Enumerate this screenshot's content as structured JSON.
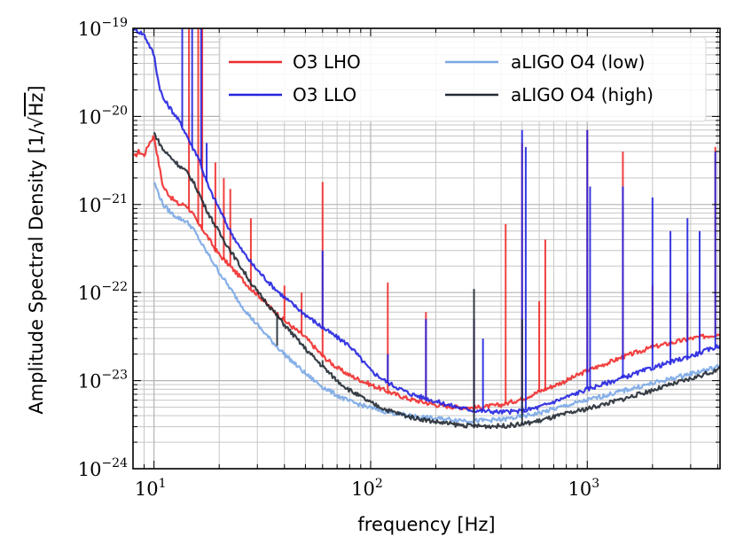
{
  "chart_data": {
    "type": "line",
    "title": "",
    "xlabel": "frequency [Hz]",
    "ylabel": "Amplitude Spectral Density [1/√Hz]",
    "ylabel_main": "Amplitude Spectral Density [1/",
    "ylabel_sqrt": "√",
    "ylabel_hz": "Hz",
    "ylabel_close": "]",
    "xscale": "log",
    "yscale": "log",
    "xlim": [
      8,
      4100
    ],
    "ylim": [
      1e-24,
      1e-19
    ],
    "grid": "major+minor",
    "x_ticks": [
      {
        "value": 10,
        "base": "10",
        "exp": "1"
      },
      {
        "value": 100,
        "base": "10",
        "exp": "2"
      },
      {
        "value": 1000,
        "base": "10",
        "exp": "3"
      }
    ],
    "y_ticks": [
      {
        "value": 1e-24,
        "base": "10",
        "exp": "−24"
      },
      {
        "value": 1e-23,
        "base": "10",
        "exp": "−23"
      },
      {
        "value": 1e-22,
        "base": "10",
        "exp": "−22"
      },
      {
        "value": 1e-21,
        "base": "10",
        "exp": "−21"
      },
      {
        "value": 1e-20,
        "base": "10",
        "exp": "−20"
      },
      {
        "value": 1e-19,
        "base": "10",
        "exp": "−19"
      }
    ],
    "legend_position": "top-right",
    "series": [
      {
        "name": "O3 LHO",
        "color": "#f02c2c",
        "points": [
          [
            8,
            3.3e-21
          ],
          [
            8.5,
            4e-21
          ],
          [
            9,
            3.6e-21
          ],
          [
            9.5,
            5e-21
          ],
          [
            10,
            6e-21
          ],
          [
            10.5,
            3e-21
          ],
          [
            11,
            1.6e-21
          ],
          [
            12,
            1.2e-21
          ],
          [
            13,
            1e-21
          ],
          [
            14,
            1e-21
          ],
          [
            15,
            8e-22
          ],
          [
            16,
            6e-22
          ],
          [
            17,
            5e-22
          ],
          [
            18,
            4e-22
          ],
          [
            19,
            3.2e-22
          ],
          [
            20,
            2.7e-22
          ],
          [
            22,
            2.1e-22
          ],
          [
            25,
            1.5e-22
          ],
          [
            28,
            1.1e-22
          ],
          [
            30,
            9.6e-23
          ],
          [
            35,
            6.5e-23
          ],
          [
            40,
            4.8e-23
          ],
          [
            50,
            3.1e-23
          ],
          [
            60,
            1.9e-23
          ],
          [
            70,
            1.4e-23
          ],
          [
            80,
            1.15e-23
          ],
          [
            100,
            9e-24
          ],
          [
            120,
            7.5e-24
          ],
          [
            150,
            6.2e-24
          ],
          [
            200,
            5.3e-24
          ],
          [
            250,
            5e-24
          ],
          [
            300,
            4.9e-24
          ],
          [
            400,
            5.3e-24
          ],
          [
            500,
            6.2e-24
          ],
          [
            600,
            7.5e-24
          ],
          [
            800,
            1e-23
          ],
          [
            1000,
            1.3e-23
          ],
          [
            1500,
            1.9e-23
          ],
          [
            2000,
            2.4e-23
          ],
          [
            3000,
            3e-23
          ],
          [
            4100,
            3.4e-23
          ]
        ],
        "spikes": [
          [
            14.5,
            1e-19
          ],
          [
            16,
            1e-19
          ],
          [
            16.7,
            1e-19
          ],
          [
            19.2,
            3e-21
          ],
          [
            21,
            2e-21
          ],
          [
            22.5,
            1.5e-21
          ],
          [
            28,
            7e-22
          ],
          [
            40,
            1.2e-22
          ],
          [
            48,
            1e-22
          ],
          [
            60,
            1.8e-21
          ],
          [
            120,
            1.3e-22
          ],
          [
            180,
            6e-23
          ],
          [
            300,
            5e-23
          ],
          [
            420,
            6e-22
          ],
          [
            500,
            5e-21
          ],
          [
            600,
            8e-23
          ],
          [
            640,
            4e-22
          ],
          [
            1000,
            7e-21
          ],
          [
            1460,
            4e-21
          ],
          [
            2000,
            1.2e-22
          ],
          [
            2900,
            1e-22
          ],
          [
            3900,
            4.5e-21
          ]
        ]
      },
      {
        "name": "O3 LLO",
        "color": "#2424e0",
        "points": [
          [
            8,
            1e-19
          ],
          [
            9,
            8.5e-20
          ],
          [
            10,
            5e-20
          ],
          [
            10.5,
            2.4e-20
          ],
          [
            11,
            1.6e-20
          ],
          [
            12,
            1.2e-20
          ],
          [
            13,
            9e-21
          ],
          [
            14,
            6.5e-21
          ],
          [
            15,
            4.5e-21
          ],
          [
            16,
            3.5e-21
          ],
          [
            17,
            2.2e-21
          ],
          [
            18,
            1.5e-21
          ],
          [
            20,
            9e-22
          ],
          [
            22,
            5.5e-22
          ],
          [
            25,
            3.2e-22
          ],
          [
            28,
            2.2e-22
          ],
          [
            30,
            1.8e-22
          ],
          [
            35,
            1.2e-22
          ],
          [
            40,
            8.8e-23
          ],
          [
            50,
            5.6e-23
          ],
          [
            60,
            4e-23
          ],
          [
            70,
            3.1e-23
          ],
          [
            80,
            2.5e-23
          ],
          [
            100,
            1.3e-23
          ],
          [
            120,
            9.5e-24
          ],
          [
            150,
            7.2e-24
          ],
          [
            200,
            5.8e-24
          ],
          [
            250,
            5e-24
          ],
          [
            300,
            4.6e-24
          ],
          [
            400,
            4.4e-24
          ],
          [
            500,
            4.5e-24
          ],
          [
            600,
            5e-24
          ],
          [
            800,
            6.5e-24
          ],
          [
            1000,
            8e-24
          ],
          [
            1500,
            1.1e-23
          ],
          [
            2000,
            1.4e-23
          ],
          [
            3000,
            1.9e-23
          ],
          [
            4100,
            2.5e-23
          ]
        ],
        "spikes": [
          [
            13.5,
            1e-19
          ],
          [
            15,
            1e-19
          ],
          [
            16.5,
            1e-19
          ],
          [
            17.5,
            5e-21
          ],
          [
            60,
            3e-22
          ],
          [
            120,
            2e-23
          ],
          [
            180,
            5e-23
          ],
          [
            300,
            5e-23
          ],
          [
            330,
            3e-23
          ],
          [
            500,
            7e-21
          ],
          [
            520,
            4.5e-21
          ],
          [
            1000,
            7e-21
          ],
          [
            1030,
            1.6e-21
          ],
          [
            1460,
            1.6e-21
          ],
          [
            2000,
            1.2e-21
          ],
          [
            2420,
            5e-22
          ],
          [
            2900,
            7e-22
          ],
          [
            3300,
            5e-22
          ],
          [
            3900,
            4e-21
          ]
        ]
      },
      {
        "name": "aLIGO O4 (low)",
        "color": "#7aa7e6",
        "points": [
          [
            10,
            1.8e-21
          ],
          [
            11,
            1e-21
          ],
          [
            12,
            8e-22
          ],
          [
            13,
            7e-22
          ],
          [
            14,
            6.5e-22
          ],
          [
            15,
            5.5e-22
          ],
          [
            16,
            4.2e-22
          ],
          [
            17,
            3.2e-22
          ],
          [
            18,
            2.6e-22
          ],
          [
            20,
            1.7e-22
          ],
          [
            22,
            1.2e-22
          ],
          [
            25,
            7.5e-23
          ],
          [
            28,
            5.2e-23
          ],
          [
            30,
            4.3e-23
          ],
          [
            35,
            2.8e-23
          ],
          [
            40,
            2e-23
          ],
          [
            50,
            1.2e-23
          ],
          [
            60,
            8.5e-24
          ],
          [
            70,
            6.8e-24
          ],
          [
            80,
            5.8e-24
          ],
          [
            100,
            4.9e-24
          ],
          [
            120,
            4.4e-24
          ],
          [
            150,
            4e-24
          ],
          [
            200,
            3.7e-24
          ],
          [
            250,
            3.6e-24
          ],
          [
            300,
            3.5e-24
          ],
          [
            400,
            3.6e-24
          ],
          [
            500,
            3.9e-24
          ],
          [
            600,
            4.3e-24
          ],
          [
            800,
            5.2e-24
          ],
          [
            1000,
            6e-24
          ],
          [
            1500,
            7.8e-24
          ],
          [
            2000,
            9.3e-24
          ],
          [
            3000,
            1.2e-23
          ],
          [
            4100,
            1.45e-23
          ]
        ],
        "spikes": []
      },
      {
        "name": "aLIGO O4 (high)",
        "color": "#222a33",
        "points": [
          [
            10,
            6.5e-21
          ],
          [
            11,
            4.2e-21
          ],
          [
            12,
            3.4e-21
          ],
          [
            13,
            2.8e-21
          ],
          [
            14,
            2.4e-21
          ],
          [
            15,
            1.9e-21
          ],
          [
            16,
            1.4e-21
          ],
          [
            17,
            1e-21
          ],
          [
            18,
            7.6e-22
          ],
          [
            20,
            4.8e-22
          ],
          [
            22,
            3.3e-22
          ],
          [
            25,
            2e-22
          ],
          [
            28,
            1.3e-22
          ],
          [
            30,
            1.02e-22
          ],
          [
            35,
            6.5e-23
          ],
          [
            40,
            4.3e-23
          ],
          [
            50,
            2.3e-23
          ],
          [
            60,
            1.45e-23
          ],
          [
            70,
            1e-23
          ],
          [
            80,
            7.8e-24
          ],
          [
            100,
            5.6e-24
          ],
          [
            120,
            4.6e-24
          ],
          [
            150,
            3.9e-24
          ],
          [
            200,
            3.4e-24
          ],
          [
            250,
            3.15e-24
          ],
          [
            300,
            3.05e-24
          ],
          [
            400,
            3.05e-24
          ],
          [
            500,
            3.2e-24
          ],
          [
            600,
            3.5e-24
          ],
          [
            800,
            4.2e-24
          ],
          [
            1000,
            4.8e-24
          ],
          [
            1500,
            6.3e-24
          ],
          [
            2000,
            7.8e-24
          ],
          [
            3000,
            1.05e-23
          ],
          [
            4100,
            1.35e-23
          ]
        ],
        "spikes": [
          [
            37,
            2.5e-23
          ],
          [
            60,
            1.7e-23
          ],
          [
            300,
            1.1e-22
          ],
          [
            500,
            5e-23
          ]
        ]
      }
    ]
  }
}
